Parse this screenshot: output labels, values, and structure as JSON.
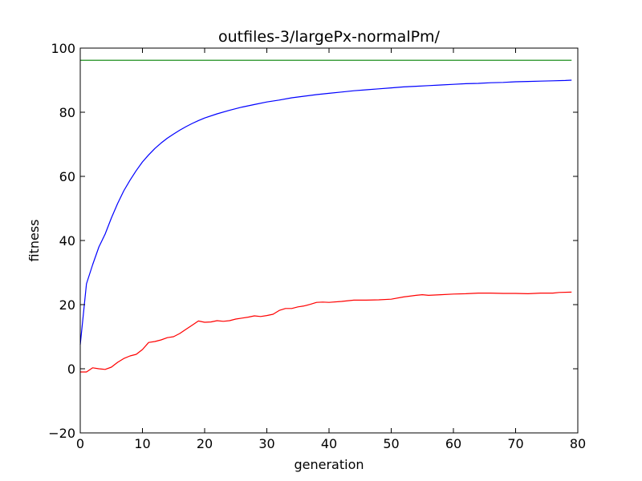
{
  "chart_data": {
    "type": "line",
    "title": "outfiles-3/largePx-normalPm/",
    "xlabel": "generation",
    "ylabel": "fitness",
    "xlim": [
      0,
      80
    ],
    "ylim": [
      -20,
      100
    ],
    "xticks": [
      "0",
      "10",
      "20",
      "30",
      "40",
      "50",
      "60",
      "70",
      "80"
    ],
    "yticks": [
      "−20",
      "0",
      "20",
      "40",
      "60",
      "80",
      "100"
    ],
    "grid": false,
    "series": [
      {
        "color": "#008000",
        "x": [
          0,
          79
        ],
        "values": [
          96.2,
          96.2
        ]
      },
      {
        "color": "#0000ff",
        "x": [
          0,
          1,
          2,
          3,
          4,
          5,
          6,
          7,
          8,
          9,
          10,
          11,
          12,
          13,
          14,
          15,
          16,
          17,
          18,
          19,
          20,
          22,
          24,
          26,
          28,
          30,
          32,
          34,
          36,
          38,
          40,
          42,
          44,
          46,
          48,
          50,
          52,
          54,
          56,
          58,
          60,
          62,
          64,
          66,
          68,
          70,
          72,
          74,
          76,
          78,
          79
        ],
        "values": [
          7.5,
          26.5,
          32.5,
          38.0,
          42.0,
          47.0,
          51.5,
          55.5,
          58.8,
          61.8,
          64.5,
          66.7,
          68.7,
          70.4,
          71.9,
          73.2,
          74.4,
          75.5,
          76.5,
          77.4,
          78.2,
          79.5,
          80.6,
          81.6,
          82.4,
          83.2,
          83.8,
          84.5,
          85.0,
          85.5,
          85.9,
          86.3,
          86.7,
          87.0,
          87.3,
          87.6,
          87.9,
          88.1,
          88.3,
          88.5,
          88.7,
          88.9,
          89.0,
          89.2,
          89.3,
          89.5,
          89.6,
          89.7,
          89.8,
          89.9,
          90.0
        ]
      },
      {
        "color": "#ff0000",
        "x": [
          0,
          1,
          2,
          3,
          4,
          5,
          6,
          7,
          8,
          9,
          10,
          11,
          12,
          13,
          14,
          15,
          16,
          17,
          18,
          19,
          20,
          21,
          22,
          23,
          24,
          25,
          26,
          27,
          28,
          29,
          30,
          31,
          32,
          33,
          34,
          35,
          36,
          37,
          38,
          39,
          40,
          42,
          44,
          46,
          48,
          50,
          52,
          54,
          55,
          56,
          58,
          60,
          62,
          64,
          66,
          68,
          70,
          72,
          74,
          76,
          77,
          79
        ],
        "values": [
          -1.0,
          -1.0,
          0.3,
          0.0,
          -0.2,
          0.5,
          2.0,
          3.2,
          4.0,
          4.5,
          6.0,
          8.2,
          8.5,
          9.0,
          9.7,
          10.0,
          11.0,
          12.3,
          13.6,
          14.9,
          14.5,
          14.6,
          15.0,
          14.8,
          15.0,
          15.5,
          15.8,
          16.1,
          16.5,
          16.3,
          16.6,
          17.0,
          18.2,
          18.8,
          18.8,
          19.3,
          19.6,
          20.1,
          20.7,
          20.8,
          20.7,
          21.0,
          21.4,
          21.4,
          21.5,
          21.7,
          22.4,
          22.9,
          23.1,
          22.9,
          23.1,
          23.3,
          23.4,
          23.6,
          23.6,
          23.5,
          23.5,
          23.4,
          23.6,
          23.6,
          23.8,
          23.9
        ]
      }
    ]
  }
}
